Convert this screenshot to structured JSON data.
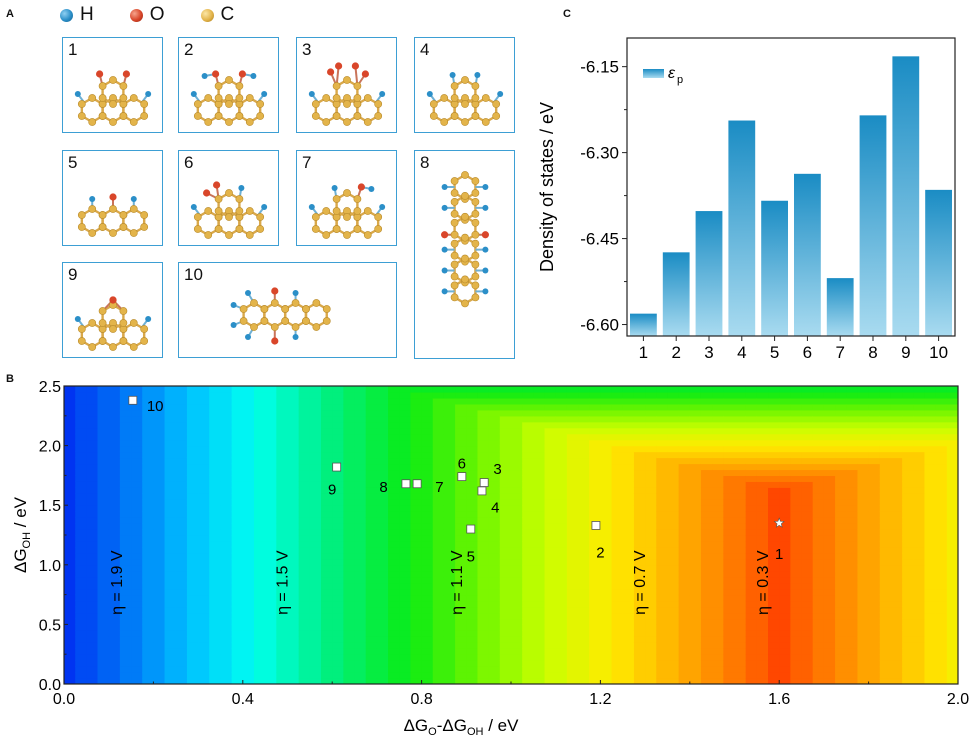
{
  "panels": {
    "a_label": "A",
    "b_label": "B",
    "c_label": "C"
  },
  "legend_atoms": [
    {
      "symbol": "H",
      "color": "#2b8fc8"
    },
    {
      "symbol": "O",
      "color": "#d9462a"
    },
    {
      "symbol": "C",
      "color": "#e3b44a"
    }
  ],
  "structures": [
    {
      "id": "1"
    },
    {
      "id": "2"
    },
    {
      "id": "3"
    },
    {
      "id": "4"
    },
    {
      "id": "5"
    },
    {
      "id": "6"
    },
    {
      "id": "7"
    },
    {
      "id": "8"
    },
    {
      "id": "9"
    },
    {
      "id": "10"
    }
  ],
  "chart_data": [
    {
      "panel": "C",
      "type": "bar",
      "title": "",
      "xlabel": "",
      "ylabel": "Density of states / eV",
      "categories": [
        "1",
        "2",
        "3",
        "4",
        "5",
        "6",
        "7",
        "8",
        "9",
        "10"
      ],
      "series": [
        {
          "name": "ε_p",
          "legend_main": "ε",
          "legend_sub": "p",
          "values": [
            -6.581,
            -6.474,
            -6.402,
            -6.244,
            -6.384,
            -6.337,
            -6.519,
            -6.235,
            -6.132,
            -6.365
          ]
        }
      ],
      "ylim": [
        -6.62,
        -6.1
      ],
      "yticks": [
        "-6.60",
        "-6.45",
        "-6.30",
        "-6.15"
      ],
      "ytick_values": [
        -6.6,
        -6.45,
        -6.3,
        -6.15
      ],
      "legend_position": "top-left",
      "grid": false,
      "colors": {
        "top": "#1a8cc4",
        "bottom": "#a9dbf0"
      }
    },
    {
      "panel": "B",
      "type": "heatmap",
      "title": "",
      "xlabel_parts": [
        "ΔG",
        "O",
        "-ΔG",
        "OH",
        " / eV"
      ],
      "ylabel_parts": [
        "ΔG",
        "OH",
        " / eV"
      ],
      "xlim": [
        0.0,
        2.0
      ],
      "ylim": [
        0.0,
        2.5
      ],
      "xticks": [
        "0.0",
        "0.4",
        "0.8",
        "1.2",
        "1.6",
        "2.0"
      ],
      "xtick_values": [
        0.0,
        0.4,
        0.8,
        1.2,
        1.6,
        2.0
      ],
      "yticks": [
        "0.0",
        "0.5",
        "1.0",
        "1.5",
        "2.0",
        "2.5"
      ],
      "ytick_values": [
        0.0,
        0.5,
        1.0,
        1.5,
        2.0,
        2.5
      ],
      "z_description": "Overpotential η (V); η = max(ΔG_OH, ΔG_O-ΔG_OH, 3.2-(ΔG_O-ΔG_OH)) - 1.23",
      "contour_step": 0.05,
      "annotations": [
        {
          "text": "η = 1.9 V",
          "x": 0.13,
          "y": 0.85
        },
        {
          "text": "η = 1.5 V",
          "x": 0.5,
          "y": 0.85
        },
        {
          "text": "η = 1.1 V",
          "x": 0.89,
          "y": 0.85
        },
        {
          "text": "η = 0.7 V",
          "x": 1.3,
          "y": 0.85
        },
        {
          "text": "η = 0.3 V",
          "x": 1.575,
          "y": 0.85
        }
      ],
      "points": [
        {
          "label": "1",
          "x": 1.6,
          "y": 1.35,
          "marker": "star",
          "label_dx": 0.0,
          "label_dy": -0.25
        },
        {
          "label": "2",
          "x": 1.19,
          "y": 1.33,
          "marker": "square",
          "label_dx": 0.01,
          "label_dy": -0.22
        },
        {
          "label": "3",
          "x": 0.94,
          "y": 1.69,
          "marker": "square",
          "label_dx": 0.03,
          "label_dy": 0.12
        },
        {
          "label": "4",
          "x": 0.935,
          "y": 1.62,
          "marker": "square",
          "label_dx": 0.03,
          "label_dy": -0.13
        },
        {
          "label": "5",
          "x": 0.91,
          "y": 1.3,
          "marker": "square",
          "label_dx": 0.0,
          "label_dy": -0.22
        },
        {
          "label": "6",
          "x": 0.89,
          "y": 1.74,
          "marker": "square",
          "label_dx": 0.0,
          "label_dy": 0.12
        },
        {
          "label": "7",
          "x": 0.79,
          "y": 1.68,
          "marker": "square",
          "label_dx": 0.05,
          "label_dy": -0.02
        },
        {
          "label": "8",
          "x": 0.765,
          "y": 1.68,
          "marker": "square",
          "label_dx": -0.05,
          "label_dy": -0.02
        },
        {
          "label": "9",
          "x": 0.61,
          "y": 1.82,
          "marker": "square",
          "label_dx": -0.01,
          "label_dy": -0.18
        },
        {
          "label": "10",
          "x": 0.154,
          "y": 2.38,
          "marker": "square",
          "label_dx": 0.05,
          "label_dy": -0.04
        }
      ]
    }
  ]
}
